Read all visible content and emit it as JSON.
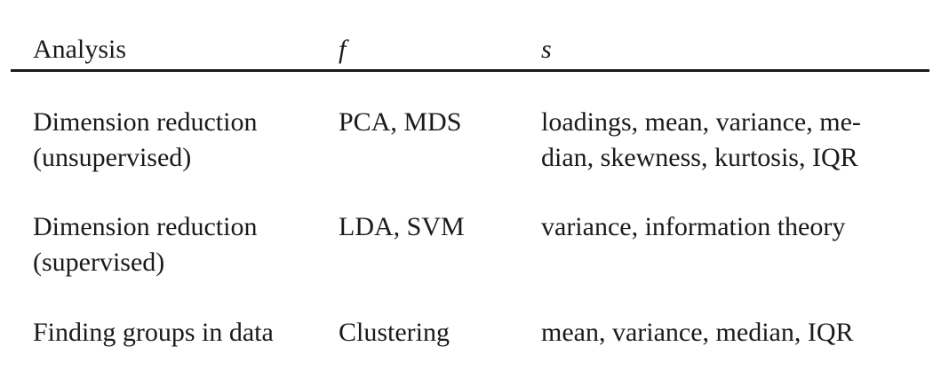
{
  "table": {
    "headers": {
      "analysis": "Analysis",
      "f": "f",
      "s": "s"
    },
    "rows": [
      {
        "analysis_line1_a": "Dimension",
        "analysis_line1_b": "reduction",
        "analysis_line2": "(unsupervised)",
        "f": "PCA, MDS",
        "s_line1_a": "loadings,",
        "s_line1_b": "mean,",
        "s_line1_c": "variance,",
        "s_line1_d": "me-",
        "s_line2": "dian, skewness, kurtosis, IQR"
      },
      {
        "analysis_line1_a": "Dimension",
        "analysis_line1_b": "reduction",
        "analysis_line2": "(supervised)",
        "f": "LDA, SVM",
        "s": "variance, information theory"
      },
      {
        "analysis": "Finding groups in data",
        "f": "Clustering",
        "s": "mean, variance, median, IQR"
      }
    ]
  }
}
